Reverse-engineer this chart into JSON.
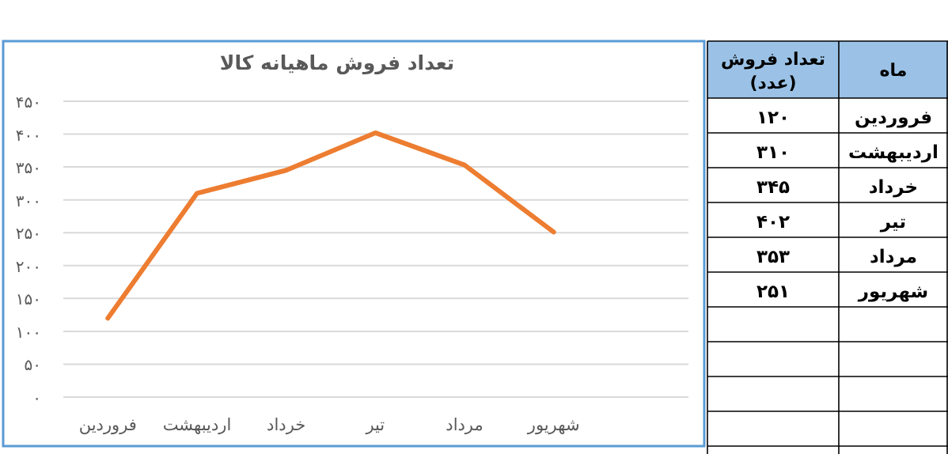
{
  "chart_data": {
    "type": "line",
    "title": "تعداد فروش ماهیانه کالا",
    "categories": [
      "فروردین",
      "اردیبهشت",
      "خرداد",
      "تیر",
      "مرداد",
      "شهریور"
    ],
    "series": [
      {
        "color": "#ed7d31",
        "values": [
          120,
          310,
          345,
          402,
          353,
          251
        ]
      }
    ],
    "value_labels": [
      "۱۲۰",
      "۳۱۰",
      "۳۴۵",
      "۴۰۲",
      "۳۵۳",
      "۲۵۱"
    ],
    "annotations": [
      "ماه",
      "تعداد فروش (عدد)"
    ],
    "ylim": [
      0,
      450
    ],
    "yticks": [
      {
        "value": 0,
        "label": "۰"
      },
      {
        "value": 50,
        "label": "۵۰"
      },
      {
        "value": 100,
        "label": "۱۰۰"
      },
      {
        "value": 150,
        "label": "۱۵۰"
      },
      {
        "value": 200,
        "label": "۲۰۰"
      },
      {
        "value": 250,
        "label": "۲۵۰"
      },
      {
        "value": 300,
        "label": "۳۰۰"
      },
      {
        "value": 350,
        "label": "۳۵۰"
      },
      {
        "value": 400,
        "label": "۴۰۰"
      },
      {
        "value": 450,
        "label": "۴۵۰"
      }
    ],
    "grid": "y",
    "marker": "none",
    "line_style": "solid"
  }
}
